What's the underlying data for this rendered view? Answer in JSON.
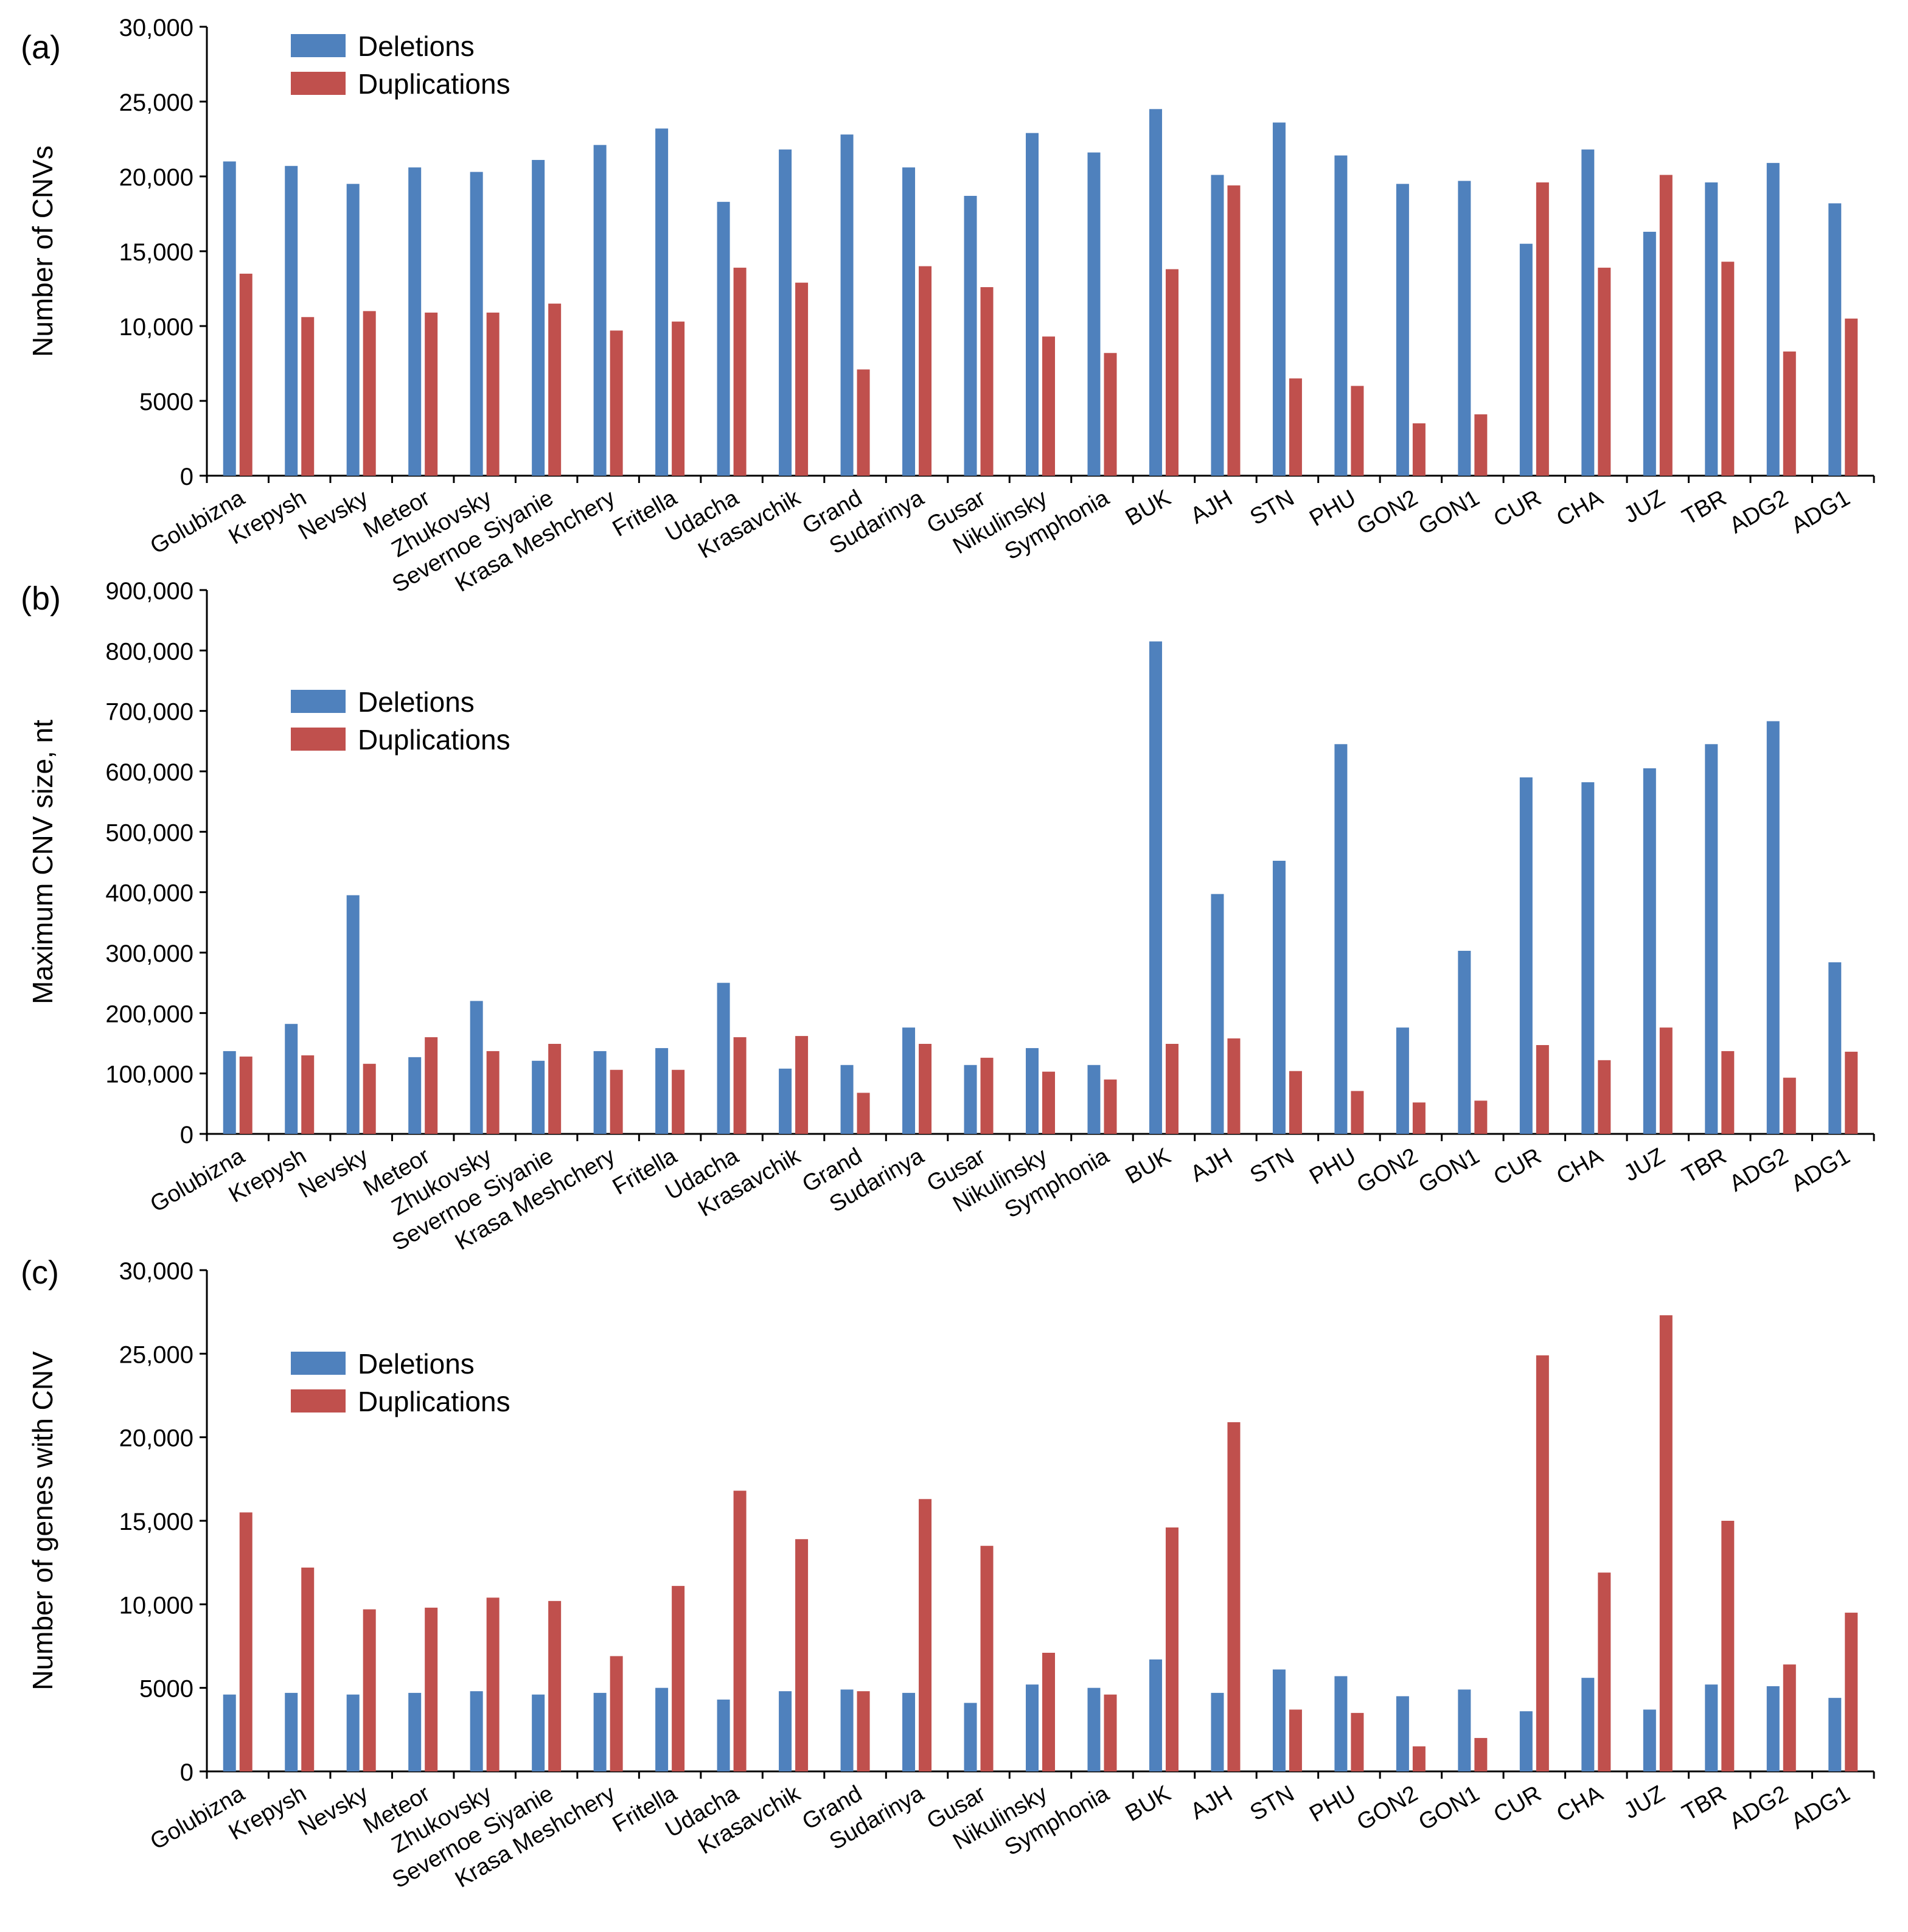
{
  "colors": {
    "deletions": "#4F81BD",
    "duplications": "#C0504D",
    "axis": "#000000"
  },
  "chart_data": [
    {
      "type": "bar",
      "panel_label": "(a)",
      "ylabel": "Number of CNVs",
      "xlabel": "",
      "ylim": [
        0,
        30000
      ],
      "yticks": [
        0,
        5000,
        10000,
        15000,
        20000,
        25000,
        30000
      ],
      "ytick_labels": [
        "0",
        "5000",
        "10,000",
        "15,000",
        "20,000",
        "25,000",
        "30,000"
      ],
      "legend": [
        "Deletions",
        "Duplications"
      ],
      "legend_position": "top-left",
      "categories": [
        "Golubizna",
        "Krepysh",
        "Nevsky",
        "Meteor",
        "Zhukovsky",
        "Severnoe Siyanie",
        "Krasa Meshchery",
        "Fritella",
        "Udacha",
        "Krasavchik",
        "Grand",
        "Sudarinya",
        "Gusar",
        "Nikulinsky",
        "Symphonia",
        "BUK",
        "AJH",
        "STN",
        "PHU",
        "GON2",
        "GON1",
        "CUR",
        "CHA",
        "JUZ",
        "TBR",
        "ADG2",
        "ADG1"
      ],
      "series": [
        {
          "name": "Deletions",
          "values": [
            21000,
            20700,
            19500,
            20600,
            20300,
            21100,
            22100,
            23200,
            18300,
            21800,
            22800,
            20600,
            18700,
            22900,
            21600,
            24500,
            20100,
            23600,
            21400,
            19500,
            19700,
            15500,
            21800,
            16300,
            19600,
            20900,
            18200
          ]
        },
        {
          "name": "Duplications",
          "values": [
            13500,
            10600,
            11000,
            10900,
            10900,
            11500,
            9700,
            10300,
            13900,
            12900,
            7100,
            14000,
            12600,
            9300,
            8200,
            13800,
            19400,
            6500,
            6000,
            3500,
            4100,
            19600,
            13900,
            20100,
            14300,
            8300,
            10500
          ]
        }
      ]
    },
    {
      "type": "bar",
      "panel_label": "(b)",
      "ylabel": "Maximum CNV size, nt",
      "xlabel": "",
      "ylim": [
        0,
        900000
      ],
      "yticks": [
        0,
        100000,
        200000,
        300000,
        400000,
        500000,
        600000,
        700000,
        800000,
        900000
      ],
      "ytick_labels": [
        "0",
        "100,000",
        "200,000",
        "300,000",
        "400,000",
        "500,000",
        "600,000",
        "700,000",
        "800,000",
        "900,000"
      ],
      "legend": [
        "Deletions",
        "Duplications"
      ],
      "legend_position": "top-left",
      "categories": [
        "Golubizna",
        "Krepysh",
        "Nevsky",
        "Meteor",
        "Zhukovsky",
        "Severnoe Siyanie",
        "Krasa Meshchery",
        "Fritella",
        "Udacha",
        "Krasavchik",
        "Grand",
        "Sudarinya",
        "Gusar",
        "Nikulinsky",
        "Symphonia",
        "BUK",
        "AJH",
        "STN",
        "PHU",
        "GON2",
        "GON1",
        "CUR",
        "CHA",
        "JUZ",
        "TBR",
        "ADG2",
        "ADG1"
      ],
      "series": [
        {
          "name": "Deletions",
          "values": [
            137000,
            182000,
            395000,
            127000,
            220000,
            121000,
            137000,
            142000,
            250000,
            108000,
            114000,
            176000,
            114000,
            142000,
            114000,
            815000,
            397000,
            452000,
            645000,
            176000,
            303000,
            590000,
            582000,
            605000,
            645000,
            683000,
            284000
          ]
        },
        {
          "name": "Duplications",
          "values": [
            128000,
            130000,
            116000,
            160000,
            137000,
            149000,
            106000,
            106000,
            160000,
            162000,
            68000,
            149000,
            126000,
            103000,
            90000,
            149000,
            158000,
            104000,
            71000,
            52000,
            55000,
            147000,
            122000,
            176000,
            137000,
            93000,
            136000
          ]
        }
      ]
    },
    {
      "type": "bar",
      "panel_label": "(c)",
      "ylabel": "Number of genes with CNV",
      "xlabel": "",
      "ylim": [
        0,
        30000
      ],
      "yticks": [
        0,
        5000,
        10000,
        15000,
        20000,
        25000,
        30000
      ],
      "ytick_labels": [
        "0",
        "5000",
        "10,000",
        "15,000",
        "20,000",
        "25,000",
        "30,000"
      ],
      "legend": [
        "Deletions",
        "Duplications"
      ],
      "legend_position": "top-left",
      "categories": [
        "Golubizna",
        "Krepysh",
        "Nevsky",
        "Meteor",
        "Zhukovsky",
        "Severnoe Siyanie",
        "Krasa Meshchery",
        "Fritella",
        "Udacha",
        "Krasavchik",
        "Grand",
        "Sudarinya",
        "Gusar",
        "Nikulinsky",
        "Symphonia",
        "BUK",
        "AJH",
        "STN",
        "PHU",
        "GON2",
        "GON1",
        "CUR",
        "CHA",
        "JUZ",
        "TBR",
        "ADG2",
        "ADG1"
      ],
      "series": [
        {
          "name": "Deletions",
          "values": [
            4600,
            4700,
            4600,
            4700,
            4800,
            4600,
            4700,
            5000,
            4300,
            4800,
            4900,
            4700,
            4100,
            5200,
            5000,
            6700,
            4700,
            6100,
            5700,
            4500,
            4900,
            3600,
            5600,
            3700,
            5200,
            5100,
            4400
          ]
        },
        {
          "name": "Duplications",
          "values": [
            15500,
            12200,
            9700,
            9800,
            10400,
            10200,
            6900,
            11100,
            16800,
            13900,
            4800,
            16300,
            13500,
            7100,
            4600,
            14600,
            20900,
            3700,
            3500,
            1500,
            2000,
            24900,
            11900,
            27300,
            15000,
            6400,
            9500
          ]
        }
      ]
    }
  ]
}
